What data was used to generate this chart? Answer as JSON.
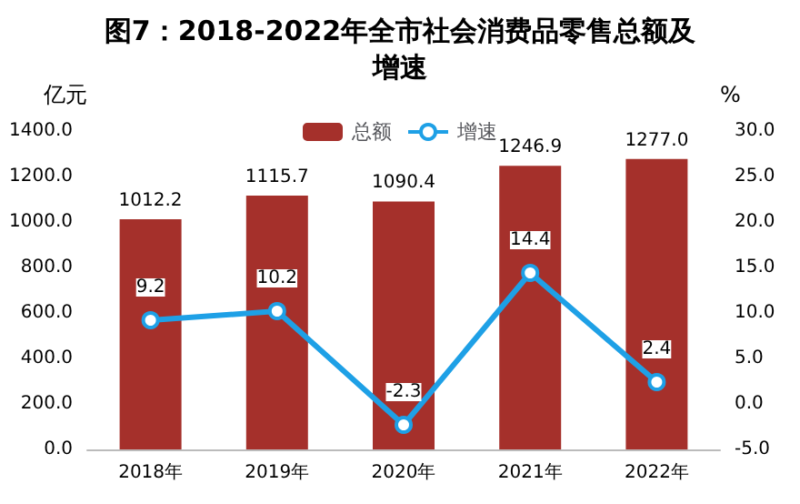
{
  "chart_data": {
    "type": "bar",
    "title": "图7：2018-2022年全市社会消费品零售总额及增速",
    "ylabel": "亿元",
    "y2label": "%",
    "categories": [
      "2018年",
      "2019年",
      "2020年",
      "2021年",
      "2022年"
    ],
    "series": [
      {
        "name": "总额",
        "color": "#a5302b",
        "values": [
          1012.2,
          1115.7,
          1090.4,
          1246.9,
          1277.0
        ],
        "value_labels": [
          "1012.2",
          "1115.7",
          "1090.4",
          "1246.9",
          "1277.0"
        ]
      },
      {
        "name": "增速",
        "type": "line",
        "axis": "y2",
        "color": "#1ea0e6",
        "values": [
          9.2,
          10.2,
          -2.3,
          14.4,
          2.4
        ]
      }
    ],
    "ylim": [
      0,
      1400
    ],
    "yticks": [
      {
        "value": 0,
        "label": "0.0"
      },
      {
        "value": 200,
        "label": "200.0"
      },
      {
        "value": 400,
        "label": "400.0"
      },
      {
        "value": 600,
        "label": "600.0"
      },
      {
        "value": 800,
        "label": "800.0"
      },
      {
        "value": 1000,
        "label": "1000.0"
      },
      {
        "value": 1200,
        "label": "1200.0"
      },
      {
        "value": 1400,
        "label": "1400.0"
      }
    ],
    "y2lim": [
      -5,
      30
    ],
    "y2ticks": [
      {
        "value": -5,
        "label": "-5.0"
      },
      {
        "value": 0,
        "label": "0.0"
      },
      {
        "value": 5,
        "label": "5.0"
      },
      {
        "value": 10,
        "label": "10.0"
      },
      {
        "value": 15,
        "label": "15.0"
      },
      {
        "value": 20,
        "label": "20.0"
      },
      {
        "value": 25,
        "label": "25.0"
      },
      {
        "value": 30,
        "label": "30.0"
      }
    ],
    "data_labels": true,
    "legend": "top",
    "grid": false,
    "marker": "circle",
    "line_style": "solid"
  }
}
